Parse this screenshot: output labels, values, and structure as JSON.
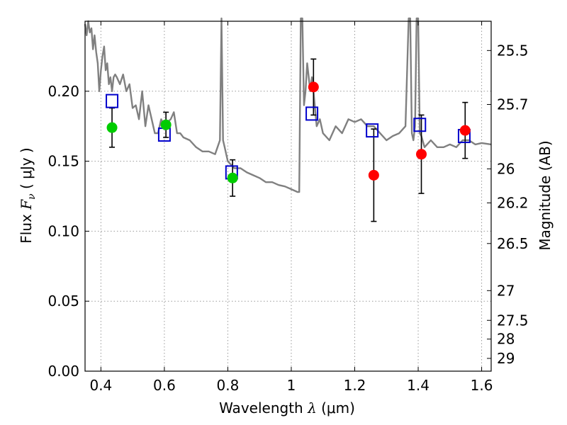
{
  "chart_data": {
    "type": "scatter",
    "title": "",
    "xlabel": "Wavelength  λ (μm)",
    "xlabel_parts": {
      "pre": "Wavelength  ",
      "sym": "λ",
      "unit": " (μm)"
    },
    "ylabel": "Flux  Fν  ( μJy )",
    "ylabel_parts": {
      "pre": "Flux  ",
      "sym": "F",
      "sub": "ν",
      "unit": "  ( μJy )"
    },
    "y2label": "Magnitude (AB)",
    "xlim": [
      0.35,
      1.63
    ],
    "ylim": [
      0.0,
      0.25
    ],
    "grid": true,
    "grid_color": "#9a9a9a",
    "x_ticks": [
      {
        "value": 0.4,
        "label": "0.4"
      },
      {
        "value": 0.6,
        "label": "0.6"
      },
      {
        "value": 0.8,
        "label": "0.8"
      },
      {
        "value": 1.0,
        "label": "1"
      },
      {
        "value": 1.2,
        "label": "1.2"
      },
      {
        "value": 1.4,
        "label": "1.4"
      },
      {
        "value": 1.6,
        "label": "1.6"
      }
    ],
    "y_ticks": [
      {
        "value": 0.0,
        "label": "0.00"
      },
      {
        "value": 0.05,
        "label": "0.05"
      },
      {
        "value": 0.1,
        "label": "0.10"
      },
      {
        "value": 0.15,
        "label": "0.15"
      },
      {
        "value": 0.2,
        "label": "0.20"
      }
    ],
    "mag_ticks": [
      {
        "value": 25.5,
        "label": "25.5"
      },
      {
        "value": 25.7,
        "label": "25.7"
      },
      {
        "value": 26.0,
        "label": "26"
      },
      {
        "value": 26.2,
        "label": "26.2"
      },
      {
        "value": 26.5,
        "label": "26.5"
      },
      {
        "value": 27.0,
        "label": "27"
      },
      {
        "value": 27.5,
        "label": "27.5"
      },
      {
        "value": 28.0,
        "label": "28"
      },
      {
        "value": 29.0,
        "label": "29"
      }
    ],
    "series": [
      {
        "kind": "line",
        "color": "#808080",
        "x": [
          0.35,
          0.355,
          0.36,
          0.365,
          0.37,
          0.375,
          0.38,
          0.385,
          0.39,
          0.395,
          0.4,
          0.405,
          0.41,
          0.415,
          0.42,
          0.425,
          0.43,
          0.435,
          0.44,
          0.445,
          0.45,
          0.46,
          0.47,
          0.48,
          0.49,
          0.5,
          0.51,
          0.52,
          0.53,
          0.54,
          0.55,
          0.56,
          0.57,
          0.58,
          0.59,
          0.6,
          0.61,
          0.62,
          0.63,
          0.64,
          0.65,
          0.66,
          0.68,
          0.7,
          0.72,
          0.74,
          0.76,
          0.775,
          0.78,
          0.785,
          0.79,
          0.795,
          0.8,
          0.82,
          0.84,
          0.86,
          0.88,
          0.9,
          0.92,
          0.94,
          0.96,
          0.98,
          1.0,
          1.02,
          1.025,
          1.03,
          1.035,
          1.04,
          1.045,
          1.05,
          1.055,
          1.06,
          1.065,
          1.07,
          1.08,
          1.09,
          1.1,
          1.12,
          1.14,
          1.16,
          1.18,
          1.2,
          1.22,
          1.24,
          1.26,
          1.28,
          1.3,
          1.32,
          1.34,
          1.36,
          1.37,
          1.375,
          1.38,
          1.385,
          1.39,
          1.395,
          1.4,
          1.405,
          1.41,
          1.42,
          1.44,
          1.46,
          1.48,
          1.5,
          1.52,
          1.54,
          1.56,
          1.58,
          1.6,
          1.63
        ],
        "y": [
          0.248,
          0.24,
          0.25,
          0.242,
          0.245,
          0.23,
          0.24,
          0.228,
          0.22,
          0.2,
          0.215,
          0.225,
          0.232,
          0.215,
          0.22,
          0.205,
          0.21,
          0.2,
          0.21,
          0.212,
          0.21,
          0.205,
          0.212,
          0.2,
          0.205,
          0.188,
          0.19,
          0.18,
          0.2,
          0.175,
          0.19,
          0.18,
          0.17,
          0.17,
          0.18,
          0.175,
          0.178,
          0.18,
          0.185,
          0.17,
          0.17,
          0.167,
          0.165,
          0.16,
          0.157,
          0.157,
          0.155,
          0.165,
          0.26,
          0.165,
          0.16,
          0.155,
          0.15,
          0.145,
          0.145,
          0.142,
          0.14,
          0.138,
          0.135,
          0.135,
          0.133,
          0.132,
          0.13,
          0.128,
          0.128,
          0.26,
          0.26,
          0.19,
          0.2,
          0.22,
          0.21,
          0.2,
          0.21,
          0.2,
          0.175,
          0.18,
          0.17,
          0.165,
          0.175,
          0.17,
          0.18,
          0.178,
          0.18,
          0.175,
          0.175,
          0.17,
          0.165,
          0.168,
          0.17,
          0.175,
          0.26,
          0.26,
          0.17,
          0.165,
          0.175,
          0.26,
          0.26,
          0.17,
          0.168,
          0.16,
          0.165,
          0.16,
          0.16,
          0.162,
          0.16,
          0.165,
          0.165,
          0.162,
          0.163,
          0.162
        ]
      },
      {
        "kind": "marker",
        "marker": "square",
        "color": "#0000cc",
        "x": [
          0.435,
          0.6,
          0.812,
          1.065,
          1.255,
          1.405,
          1.545
        ],
        "y": [
          0.193,
          0.169,
          0.142,
          0.184,
          0.172,
          0.176,
          0.168
        ]
      },
      {
        "kind": "marker",
        "marker": "circle",
        "color": "#00cc00",
        "x": [
          0.435,
          0.605,
          0.815
        ],
        "y": [
          0.174,
          0.176,
          0.138
        ],
        "yerr": [
          0.014,
          0.009,
          0.013
        ]
      },
      {
        "kind": "marker",
        "marker": "circle",
        "color": "#ff0000",
        "x": [
          1.07,
          1.26,
          1.41,
          1.548
        ],
        "y": [
          0.203,
          0.14,
          0.155,
          0.172
        ],
        "yerr": [
          0.02,
          0.033,
          0.028,
          0.02
        ]
      }
    ]
  }
}
